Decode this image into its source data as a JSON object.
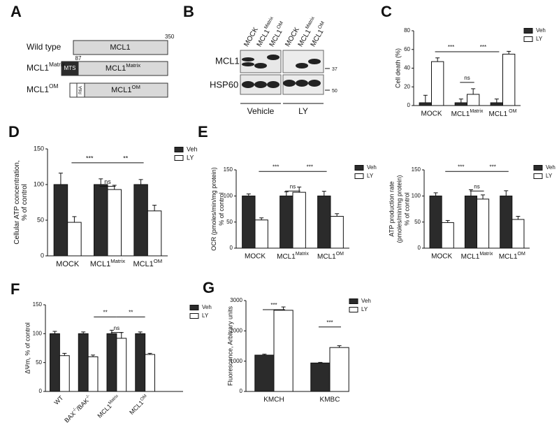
{
  "labels": [
    "A",
    "B",
    "C",
    "D",
    "E",
    "F",
    "G"
  ],
  "diagram": {
    "rows": [
      {
        "label": "Wild type",
        "box": "MCL1",
        "end": 350
      },
      {
        "label": [
          "MCL1",
          "Matrix"
        ],
        "box": [
          "MCL1",
          "Matrix"
        ],
        "start": 87,
        "tag": "MTS"
      },
      {
        "label": [
          "MCL1",
          "OM"
        ],
        "box": [
          "MCL1",
          "OM"
        ],
        "tag": "R6A"
      }
    ]
  },
  "blot": {
    "lanes": [
      "MOCK",
      [
        "MCL1",
        "Matrix"
      ],
      [
        "MCL1",
        "OM"
      ],
      "MOCK",
      [
        "MCL1",
        "Matrix"
      ],
      [
        "MCL1",
        "OM"
      ]
    ],
    "rows": [
      "MCL1",
      "HSP60"
    ],
    "markers": [
      37,
      50
    ],
    "groups": [
      "Vehicle",
      "LY"
    ]
  },
  "chart_data": [
    {
      "type": "bar",
      "ylabel": [
        "Cell death (%)"
      ],
      "categories": [
        "MOCK",
        [
          "MCL1",
          "Matrix"
        ],
        [
          "MCL1",
          " OM"
        ]
      ],
      "series": [
        {
          "name": "Veh",
          "color": "#2b2b2b",
          "values": [
            3,
            3,
            3
          ],
          "errors": [
            8,
            4,
            4
          ]
        },
        {
          "name": "LY",
          "color": "#ffffff",
          "values": [
            47,
            12,
            55
          ],
          "errors": [
            4,
            6,
            3
          ]
        }
      ],
      "ylim": [
        0,
        80
      ],
      "yticks": [
        0,
        20,
        40,
        60,
        80
      ],
      "brackets": [
        "***",
        "***",
        "ns"
      ]
    },
    {
      "type": "bar",
      "ylabel": [
        "Cellular ATP concentration,",
        "% of control"
      ],
      "categories": [
        "MOCK",
        [
          "MCL1",
          "Matrix"
        ],
        [
          "MCL1",
          "OM"
        ]
      ],
      "series": [
        {
          "name": "Veh",
          "color": "#2b2b2b",
          "values": [
            100,
            100,
            100
          ],
          "errors": [
            16,
            8,
            7
          ]
        },
        {
          "name": "LY",
          "color": "#ffffff",
          "values": [
            47,
            93,
            63
          ],
          "errors": [
            8,
            6,
            8
          ]
        }
      ],
      "ylim": [
        0,
        150
      ],
      "yticks": [
        0,
        50,
        100,
        150
      ],
      "brackets": [
        "***",
        "**",
        "ns"
      ]
    },
    {
      "type": "bar",
      "ylabel": [
        "OCR (pmoles/min/mg protein)",
        "% of control"
      ],
      "categories": [
        "MOCK",
        [
          "MCL1",
          "Matrix"
        ],
        [
          "MCL1",
          "OM"
        ]
      ],
      "series": [
        {
          "name": "Veh",
          "color": "#2b2b2b",
          "values": [
            100,
            100,
            100
          ],
          "errors": [
            4,
            8,
            9
          ]
        },
        {
          "name": "LY",
          "color": "#ffffff",
          "values": [
            54,
            107,
            61
          ],
          "errors": [
            4,
            10,
            5
          ]
        }
      ],
      "ylim": [
        0,
        150
      ],
      "yticks": [
        0,
        50,
        100,
        150
      ],
      "brackets": [
        "***",
        "***",
        "ns"
      ]
    },
    {
      "type": "bar",
      "ylabel": [
        "ATP production rate",
        "(pmoles/min/mg protein)",
        "% of control"
      ],
      "categories": [
        "MOCK",
        [
          "MCL1",
          "Matrix"
        ],
        [
          "MCL1",
          "OM"
        ]
      ],
      "series": [
        {
          "name": "Veh",
          "color": "#2b2b2b",
          "values": [
            100,
            100,
            100
          ],
          "errors": [
            6,
            12,
            10
          ]
        },
        {
          "name": "LY",
          "color": "#ffffff",
          "values": [
            49,
            94,
            55
          ],
          "errors": [
            4,
            8,
            6
          ]
        }
      ],
      "ylim": [
        0,
        150
      ],
      "yticks": [
        0,
        50,
        100,
        150
      ],
      "brackets": [
        "***",
        "***",
        "ns"
      ]
    },
    {
      "type": "bar",
      "ylabel": [
        "ΔΨm, % of control"
      ],
      "categories": [
        "WT",
        [
          "BAX",
          "-/-",
          "/BAK",
          "-/-"
        ],
        [
          "MCL1",
          "Matrix"
        ],
        [
          "MCL1",
          "OM"
        ]
      ],
      "series": [
        {
          "name": "Veh",
          "color": "#2b2b2b",
          "values": [
            100,
            100,
            100,
            100
          ],
          "errors": [
            4,
            3,
            6,
            3
          ]
        },
        {
          "name": "LY",
          "color": "#ffffff",
          "values": [
            62,
            60,
            92,
            64
          ],
          "errors": [
            4,
            3,
            10,
            2
          ]
        }
      ],
      "ylim": [
        0,
        150
      ],
      "yticks": [
        0,
        50,
        100,
        150
      ],
      "brackets": [
        "**",
        "**",
        "ns"
      ]
    },
    {
      "type": "bar",
      "ylabel": [
        "Fluorescence, Arbitrary units"
      ],
      "categories": [
        "KMCH",
        "KMBC"
      ],
      "series": [
        {
          "name": "Veh",
          "color": "#2b2b2b",
          "values": [
            1200,
            940
          ],
          "errors": [
            30,
            20
          ]
        },
        {
          "name": "LY",
          "color": "#ffffff",
          "values": [
            2680,
            1450
          ],
          "errors": [
            110,
            60
          ]
        }
      ],
      "ylim": [
        0,
        3000
      ],
      "yticks": [
        0,
        1000,
        2000,
        3000
      ],
      "brackets": [
        "***",
        "***"
      ]
    }
  ]
}
